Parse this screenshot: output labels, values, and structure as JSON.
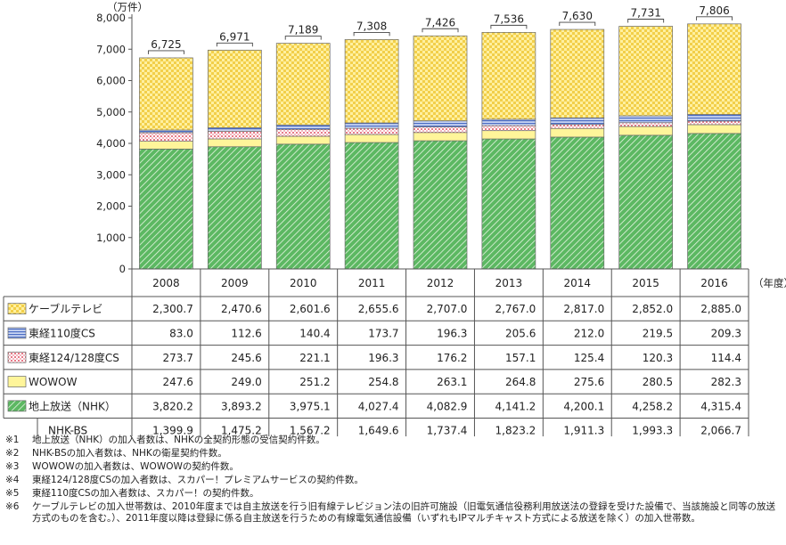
{
  "chart_data": {
    "type": "bar",
    "stacked": true,
    "unit_label": "（万件）",
    "x_suffix": "（年度）",
    "categories": [
      "2008",
      "2009",
      "2010",
      "2011",
      "2012",
      "2013",
      "2014",
      "2015",
      "2016"
    ],
    "totals": [
      "6,725",
      "6,971",
      "7,189",
      "7,308",
      "7,426",
      "7,536",
      "7,630",
      "7,731",
      "7,806"
    ],
    "ylim": [
      0,
      8000
    ],
    "yticks": [
      "0",
      "1,000",
      "2,000",
      "3,000",
      "4,000",
      "5,000",
      "6,000",
      "7,000",
      "8,000"
    ],
    "series": [
      {
        "name": "地上放送（NHK）",
        "color": "#4daa55",
        "pattern": "diag-green",
        "values": [
          3820.2,
          3893.2,
          3975.1,
          4027.4,
          4082.9,
          4141.2,
          4200.1,
          4258.2,
          4315.4
        ],
        "labels": [
          "3,820.2",
          "3,893.2",
          "3,975.1",
          "4,027.4",
          "4,082.9",
          "4,141.2",
          "4,200.1",
          "4,258.2",
          "4,315.4"
        ]
      },
      {
        "name": "WOWOW",
        "color": "#fff4a0",
        "pattern": "solid-yellow",
        "values": [
          247.6,
          249.0,
          251.2,
          254.8,
          263.1,
          264.8,
          275.6,
          280.5,
          282.3
        ],
        "labels": [
          "247.6",
          "249.0",
          "251.2",
          "254.8",
          "263.1",
          "264.8",
          "275.6",
          "280.5",
          "282.3"
        ]
      },
      {
        "name": "東経124/128度CS",
        "color": "#f0a0a8",
        "pattern": "dots-pink",
        "values": [
          273.7,
          245.6,
          221.1,
          196.3,
          176.2,
          157.1,
          125.4,
          120.3,
          114.4
        ],
        "labels": [
          "273.7",
          "245.6",
          "221.1",
          "196.3",
          "176.2",
          "157.1",
          "125.4",
          "120.3",
          "114.4"
        ]
      },
      {
        "name": "東経110度CS",
        "color": "#7b95d6",
        "pattern": "hlines-blue",
        "values": [
          83.0,
          112.6,
          140.4,
          173.7,
          196.3,
          205.6,
          212.0,
          219.5,
          209.3
        ],
        "labels": [
          "83.0",
          "112.6",
          "140.4",
          "173.7",
          "196.3",
          "205.6",
          "212.0",
          "219.5",
          "209.3"
        ]
      },
      {
        "name": "ケーブルテレビ",
        "color": "#f5d75a",
        "pattern": "check-yellow",
        "values": [
          2300.7,
          2470.6,
          2601.6,
          2655.6,
          2707.0,
          2767.0,
          2817.0,
          2852.0,
          2885.0
        ],
        "labels": [
          "2,300.7",
          "2,470.6",
          "2,601.6",
          "2,655.6",
          "2,707.0",
          "2,767.0",
          "2,817.0",
          "2,852.0",
          "2,885.0"
        ]
      }
    ],
    "extra_row": {
      "name": "NHK-BS",
      "labels": [
        "1,399.9",
        "1,475.2",
        "1,567.2",
        "1,649.6",
        "1,737.4",
        "1,823.2",
        "1,911.3",
        "1,993.3",
        "2,066.7"
      ]
    }
  },
  "table_order": [
    4,
    3,
    2,
    1,
    0
  ],
  "notes": [
    {
      "num": "※1",
      "text": "地上放送（NHK）の加入者数は、NHKの全契約形態の受信契約件数。"
    },
    {
      "num": "※2",
      "text": "NHK-BSの加入者数は、NHKの衛星契約件数。"
    },
    {
      "num": "※3",
      "text": "WOWOWの加入者数は、WOWOWの契約件数。"
    },
    {
      "num": "※4",
      "text": "東経124/128度CSの加入者数は、スカパー！プレミアムサービスの契約件数。"
    },
    {
      "num": "※5",
      "text": "東経110度CSの加入者数は、スカパー！の契約件数。"
    },
    {
      "num": "※6",
      "text": "ケーブルテレビの加入世帯数は、2010年度までは自主放送を行う旧有線テレビジョン法の旧許可施設（旧電気通信役務利用放送法の登録を受けた設備で、当該施設と同等の放送方式のものを含む。）、2011年度以降は登録に係る自主放送を行うための有線電気通信設備（いずれもIPマルチキャスト方式による放送を除く）の加入世帯数。"
    }
  ]
}
